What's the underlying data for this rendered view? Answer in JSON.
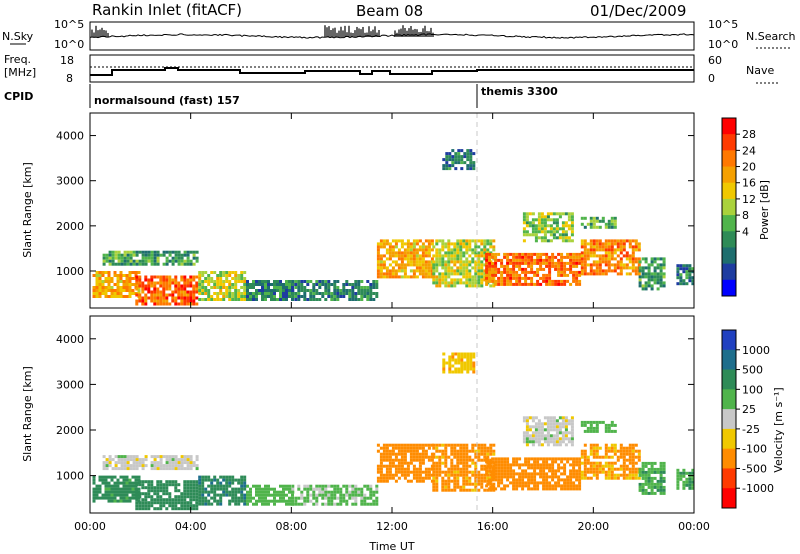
{
  "header": {
    "title": "Rankin Inlet (fitACF)",
    "beam": "Beam 08",
    "date": "01/Dec/2009"
  },
  "strips": {
    "nsky_label": "N.Sky",
    "nsky_ticks": [
      "10^5",
      "10^0"
    ],
    "nsearch_label": "N.Search",
    "freq_label": "Freq.",
    "freq_unit": "[MHz]",
    "freq_ticks": [
      "18",
      "8"
    ],
    "nave_label": "Nave",
    "nave_ticks": [
      "60",
      "0"
    ],
    "cpid_label": "CPID",
    "cpid_segments": [
      {
        "label": "normalsound (fast) 157",
        "start": "00:00"
      },
      {
        "label": "themis 3300",
        "start": "15:45"
      }
    ]
  },
  "colors": {
    "frame": "#000000",
    "gap_line": "#c8c8c8",
    "ground_scatter": "#bebebe"
  },
  "chart_data": [
    {
      "type": "heatmap",
      "name": "power",
      "ylabel": "Slant Range [km]",
      "colorbar_label": "Power [dB]",
      "colorbar_ticks": [
        "28",
        "24",
        "20",
        "16",
        "12",
        "8",
        "4"
      ],
      "colorbar_colors": [
        "#ff0000",
        "#ff3a00",
        "#ff7800",
        "#f5a000",
        "#f0c800",
        "#aad23c",
        "#50b44b",
        "#2e8b57",
        "#1e6e6e",
        "#1e3ca0",
        "#0000ff"
      ],
      "x_ticks": [
        "00:00",
        "04:00",
        "08:00",
        "12:00",
        "16:00",
        "20:00",
        "00:00"
      ],
      "y_ticks": [
        "1000",
        "2000",
        "3000",
        "4000"
      ],
      "xlim_hours": [
        0,
        24
      ],
      "ylim_km": [
        180,
        4500
      ],
      "regions": [
        {
          "t0": 0.1,
          "t1": 2.0,
          "r0": 450,
          "r1": 1000,
          "value": 22
        },
        {
          "t0": 1.8,
          "t1": 4.3,
          "r0": 300,
          "r1": 900,
          "value": 27
        },
        {
          "t0": 4.3,
          "t1": 6.2,
          "r0": 350,
          "r1": 1000,
          "value": 17
        },
        {
          "t0": 6.2,
          "t1": 8.0,
          "r0": 350,
          "r1": 800,
          "value": 9
        },
        {
          "t0": 0.5,
          "t1": 4.3,
          "r0": 1150,
          "r1": 1450,
          "value": 11
        },
        {
          "t0": 8.0,
          "t1": 11.4,
          "r0": 400,
          "r1": 800,
          "value": 8
        },
        {
          "t0": 11.4,
          "t1": 13.6,
          "r0": 850,
          "r1": 1700,
          "value": 22
        },
        {
          "t0": 13.6,
          "t1": 16.0,
          "r0": 700,
          "r1": 1700,
          "value": 17
        },
        {
          "t0": 15.7,
          "t1": 19.5,
          "r0": 700,
          "r1": 1400,
          "value": 26
        },
        {
          "t0": 19.5,
          "t1": 21.8,
          "r0": 950,
          "r1": 1700,
          "value": 24
        },
        {
          "t0": 17.2,
          "t1": 19.2,
          "r0": 1700,
          "r1": 2300,
          "value": 15
        },
        {
          "t0": 19.5,
          "t1": 20.9,
          "r0": 1950,
          "r1": 2200,
          "value": 12
        },
        {
          "t0": 21.8,
          "t1": 22.8,
          "r0": 600,
          "r1": 1300,
          "value": 10
        },
        {
          "t0": 23.3,
          "t1": 24.0,
          "r0": 750,
          "r1": 1150,
          "value": 8
        },
        {
          "t0": 14.0,
          "t1": 15.3,
          "r0": 3300,
          "r1": 3700,
          "value": 7
        }
      ]
    },
    {
      "type": "heatmap",
      "name": "velocity",
      "ylabel": "Slant Range [km]",
      "xlabel": "Time UT",
      "colorbar_label": "Velocity [m s⁻¹]",
      "colorbar_ticks": [
        "1000",
        "500",
        "100",
        "25",
        "-25",
        "-100",
        "-500",
        "-1000"
      ],
      "colorbar_colors": [
        "#2040c0",
        "#1e6e8c",
        "#2e8b57",
        "#50b44b",
        "#c8c8c8",
        "#f0c800",
        "#ff8c00",
        "#ff3a00",
        "#ff0000"
      ],
      "x_ticks": [
        "00:00",
        "04:00",
        "08:00",
        "12:00",
        "16:00",
        "20:00",
        "00:00"
      ],
      "y_ticks": [
        "1000",
        "2000",
        "3000",
        "4000"
      ],
      "xlim_hours": [
        0,
        24
      ],
      "ylim_km": [
        180,
        4500
      ],
      "regions": [
        {
          "t0": 0.1,
          "t1": 2.0,
          "r0": 450,
          "r1": 1000,
          "value": 150
        },
        {
          "t0": 1.8,
          "t1": 4.3,
          "r0": 300,
          "r1": 900,
          "value": 300
        },
        {
          "t0": 4.3,
          "t1": 6.2,
          "r0": 350,
          "r1": 1000,
          "value": 400
        },
        {
          "t0": 6.2,
          "t1": 8.0,
          "r0": 350,
          "r1": 800,
          "value": 60
        },
        {
          "t0": 0.5,
          "t1": 4.3,
          "r0": 1150,
          "r1": 1450,
          "value": 0
        },
        {
          "t0": 8.0,
          "t1": 11.4,
          "r0": 400,
          "r1": 800,
          "value": 40
        },
        {
          "t0": 11.4,
          "t1": 13.6,
          "r0": 850,
          "r1": 1700,
          "value": -300
        },
        {
          "t0": 13.6,
          "t1": 16.0,
          "r0": 700,
          "r1": 1700,
          "value": -150
        },
        {
          "t0": 15.7,
          "t1": 19.5,
          "r0": 700,
          "r1": 1400,
          "value": -250
        },
        {
          "t0": 19.5,
          "t1": 21.8,
          "r0": 950,
          "r1": 1700,
          "value": -120
        },
        {
          "t0": 17.2,
          "t1": 19.2,
          "r0": 1700,
          "r1": 2300,
          "value": 0
        },
        {
          "t0": 19.5,
          "t1": 20.9,
          "r0": 1950,
          "r1": 2200,
          "value": 60
        },
        {
          "t0": 21.8,
          "t1": 22.8,
          "r0": 600,
          "r1": 1300,
          "value": 80
        },
        {
          "t0": 23.3,
          "t1": 24.0,
          "r0": 750,
          "r1": 1150,
          "value": 80
        },
        {
          "t0": 14.0,
          "t1": 15.3,
          "r0": 3300,
          "r1": 3700,
          "value": -80
        }
      ]
    }
  ]
}
